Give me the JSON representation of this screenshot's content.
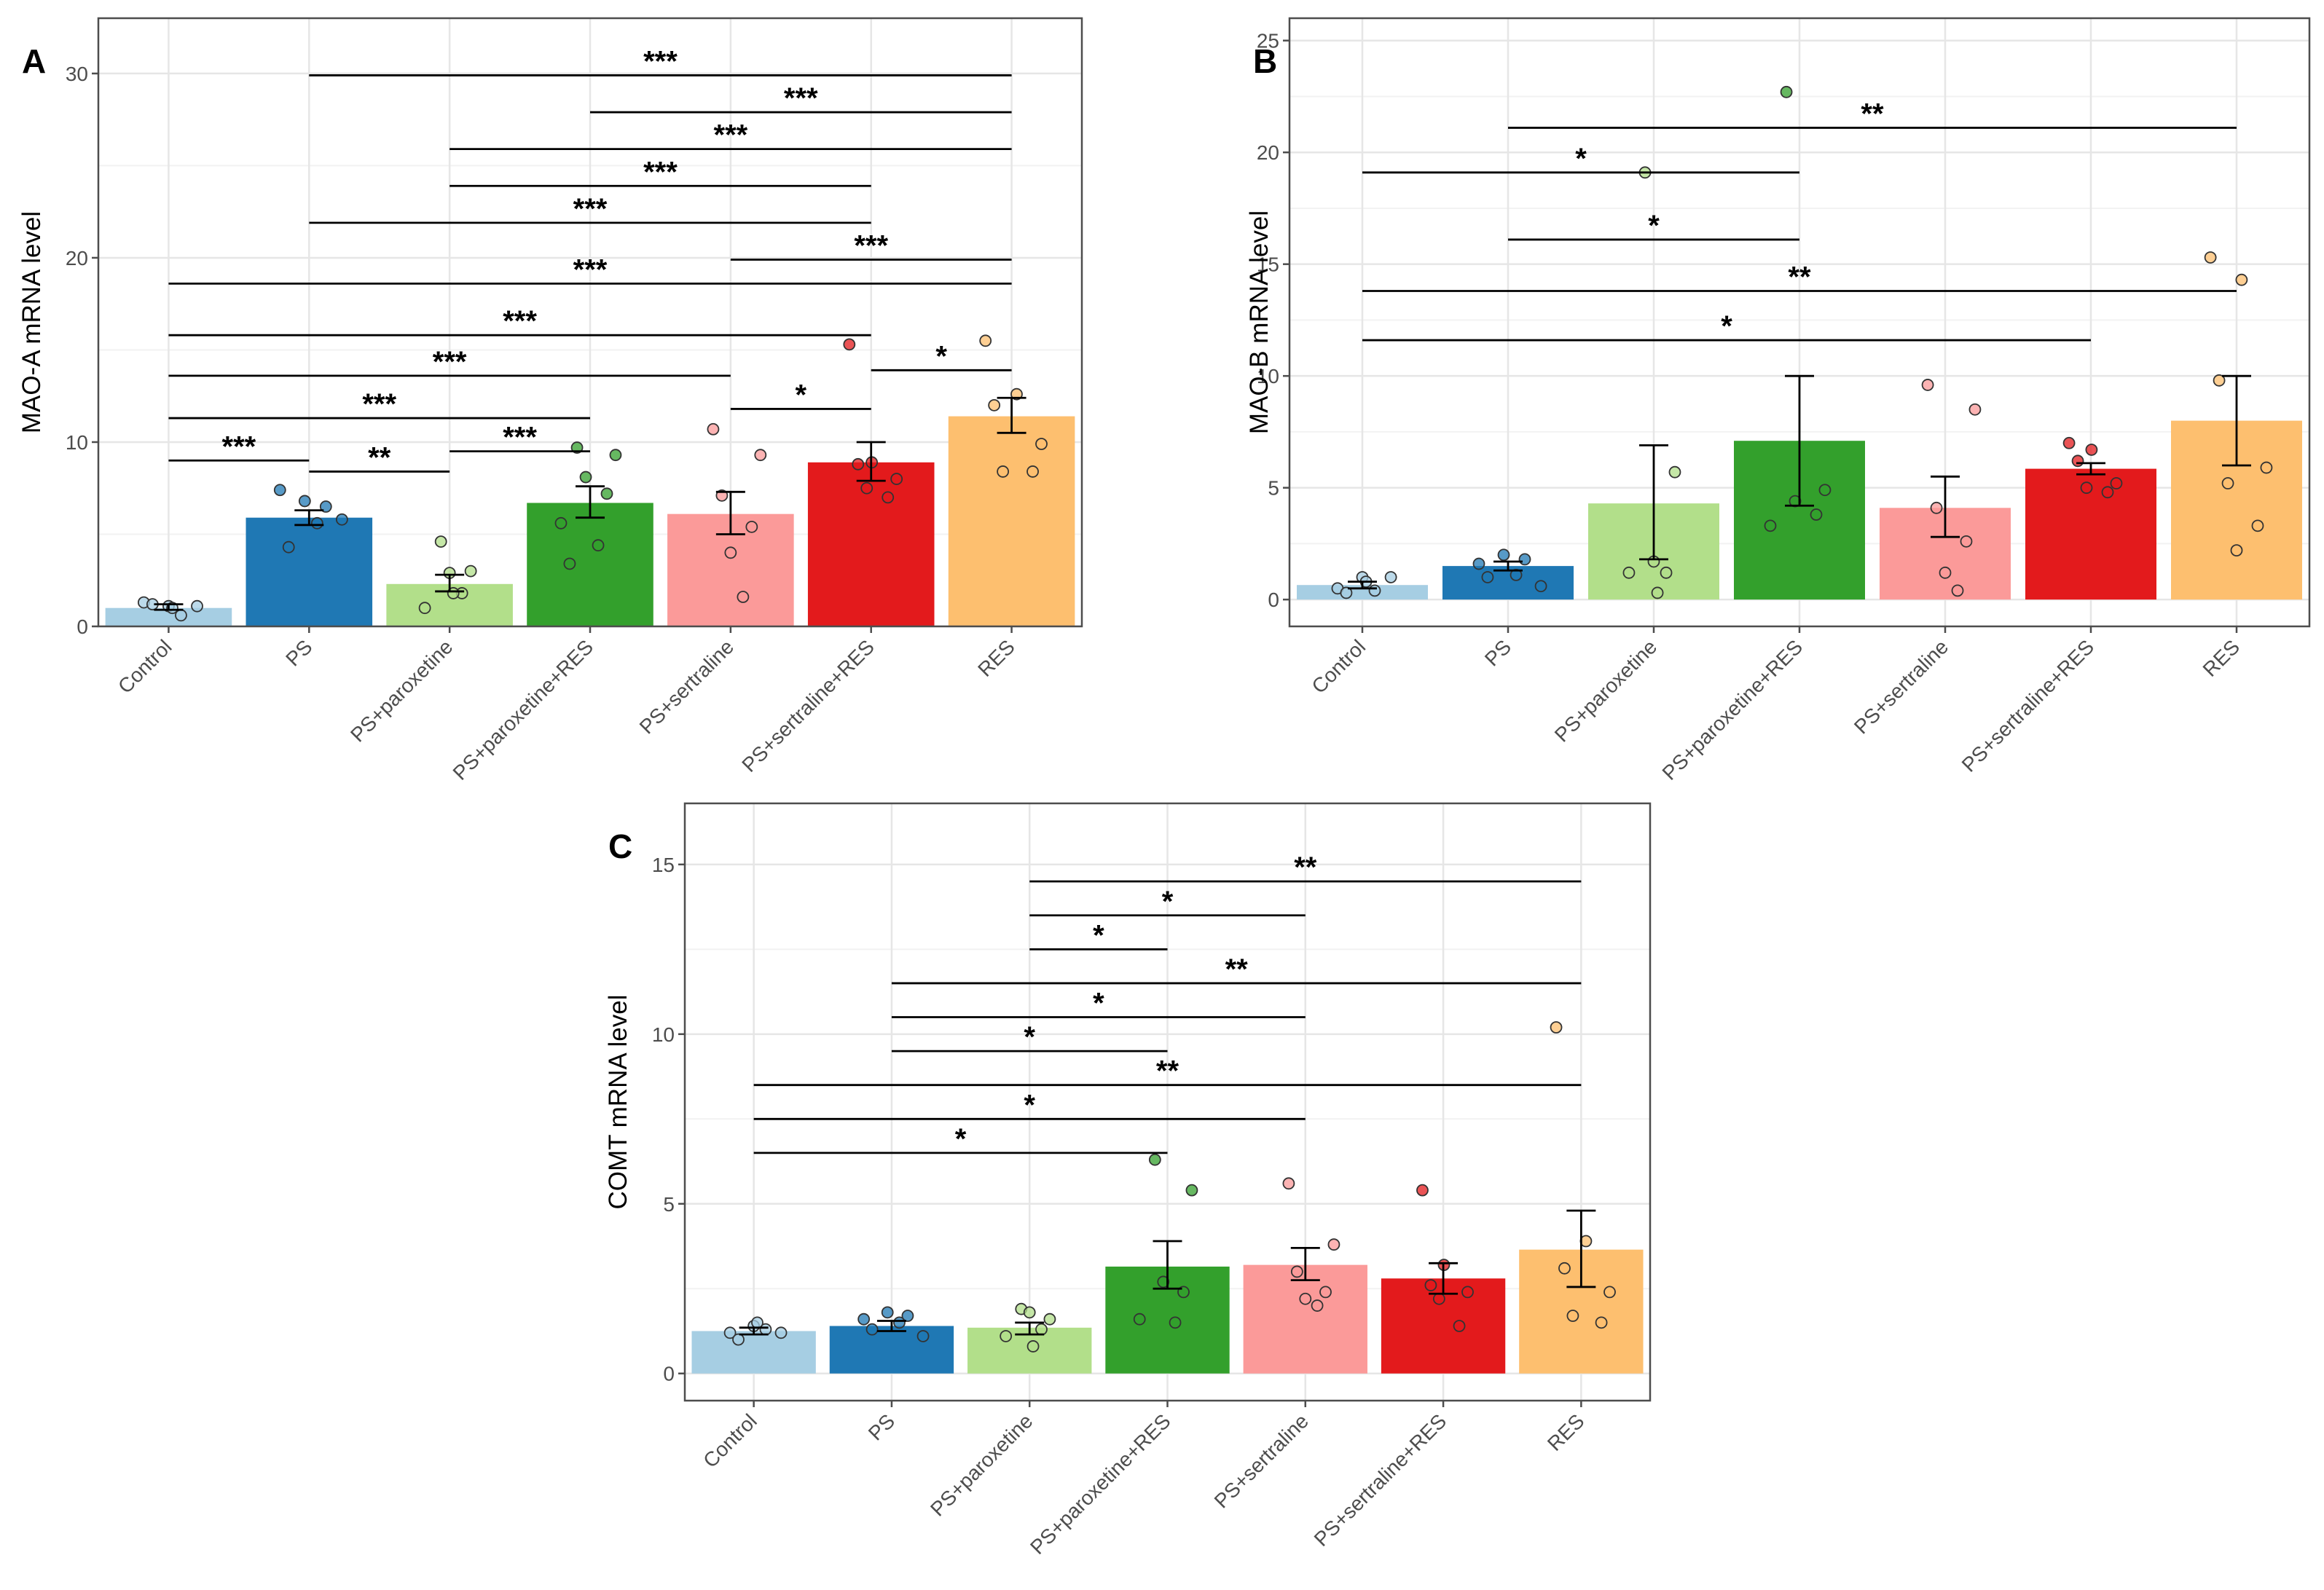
{
  "chart_data": [
    {
      "id": "A",
      "type": "bar",
      "panel_label": "A",
      "title": "",
      "xlabel": "",
      "ylabel": "MAO-A mRNA level",
      "ylim": [
        0,
        33
      ],
      "yticks": [
        0,
        10,
        20,
        30
      ],
      "grid": true,
      "categories": [
        "Control",
        "PS",
        "PS+paroxetine",
        "PS+paroxetine+RES",
        "PS+sertraline",
        "PS+sertraline+RES",
        "RES"
      ],
      "colors": [
        "#a6cee3",
        "#1f78b4",
        "#b2df8a",
        "#33a02c",
        "#fb9a99",
        "#e31a1c",
        "#fdbf6f"
      ],
      "values": [
        1.0,
        5.9,
        2.3,
        6.7,
        6.1,
        8.9,
        11.4
      ],
      "error_low": [
        0.9,
        5.5,
        1.9,
        5.9,
        5.0,
        7.9,
        10.5
      ],
      "error_high": [
        1.2,
        6.3,
        2.8,
        7.6,
        7.3,
        10.0,
        12.4
      ],
      "points": [
        [
          1.1,
          0.6,
          1.3,
          1.0,
          1.2,
          1.1
        ],
        [
          6.8,
          6.5,
          7.4,
          5.6,
          4.3,
          5.8
        ],
        [
          4.6,
          3.0,
          2.9,
          1.8,
          1.0,
          1.8
        ],
        [
          9.7,
          9.3,
          8.1,
          7.2,
          5.6,
          4.4,
          3.4
        ],
        [
          10.7,
          9.3,
          7.1,
          5.4,
          4.0,
          1.6
        ],
        [
          15.3,
          8.9,
          8.8,
          8.0,
          7.5,
          7.0
        ],
        [
          15.5,
          12.6,
          12.0,
          9.9,
          8.4,
          8.4
        ]
      ],
      "comparisons": [
        {
          "from": "Control",
          "to": "PS",
          "y": 9.0,
          "label": "***"
        },
        {
          "from": "PS",
          "to": "PS+paroxetine",
          "y": 8.4,
          "label": "**"
        },
        {
          "from": "PS+paroxetine",
          "to": "PS+paroxetine+RES",
          "y": 9.5,
          "label": "***"
        },
        {
          "from": "Control",
          "to": "PS+paroxetine+RES",
          "y": 11.3,
          "label": "***"
        },
        {
          "from": "PS+sertraline",
          "to": "PS+sertraline+RES",
          "y": 11.8,
          "label": "*"
        },
        {
          "from": "Control",
          "to": "PS+sertraline",
          "y": 13.6,
          "label": "***"
        },
        {
          "from": "PS+sertraline+RES",
          "to": "RES",
          "y": 13.9,
          "label": "*"
        },
        {
          "from": "Control",
          "to": "PS+sertraline+RES",
          "y": 15.8,
          "label": "***"
        },
        {
          "from": "Control",
          "to": "RES",
          "y": 18.6,
          "label": "***"
        },
        {
          "from": "PS+sertraline",
          "to": "RES",
          "y": 19.9,
          "label": "***"
        },
        {
          "from": "PS",
          "to": "PS+sertraline+RES",
          "y": 21.9,
          "label": "***"
        },
        {
          "from": "PS+paroxetine",
          "to": "PS+sertraline+RES",
          "y": 23.9,
          "label": "***"
        },
        {
          "from": "PS+paroxetine",
          "to": "RES",
          "y": 25.9,
          "label": "***"
        },
        {
          "from": "PS+paroxetine+RES",
          "to": "RES",
          "y": 27.9,
          "label": "***"
        },
        {
          "from": "PS",
          "to": "RES",
          "y": 29.9,
          "label": "***"
        }
      ]
    },
    {
      "id": "B",
      "type": "bar",
      "panel_label": "B",
      "title": "",
      "xlabel": "",
      "ylabel": "MAO-B mRNA level",
      "ylim": [
        -1.2,
        26
      ],
      "yticks": [
        0,
        5,
        10,
        15,
        20,
        25
      ],
      "grid": true,
      "categories": [
        "Control",
        "PS",
        "PS+paroxetine",
        "PS+paroxetine+RES",
        "PS+sertraline",
        "PS+sertraline+RES",
        "RES"
      ],
      "colors": [
        "#a6cee3",
        "#1f78b4",
        "#b2df8a",
        "#33a02c",
        "#fb9a99",
        "#e31a1c",
        "#fdbf6f"
      ],
      "values": [
        0.65,
        1.5,
        4.3,
        7.1,
        4.1,
        5.85,
        8.0
      ],
      "error_low": [
        0.5,
        1.3,
        1.8,
        4.2,
        2.8,
        5.6,
        6.0
      ],
      "error_high": [
        0.8,
        1.7,
        6.9,
        10.0,
        5.5,
        6.1,
        10.0
      ],
      "points": [
        [
          1.0,
          0.4,
          0.5,
          0.8,
          0.3,
          1.0
        ],
        [
          2.0,
          1.8,
          1.6,
          1.1,
          1.0,
          0.6
        ],
        [
          19.1,
          5.7,
          1.7,
          1.2,
          1.2,
          0.3
        ],
        [
          22.7,
          4.9,
          4.4,
          3.8,
          3.3
        ],
        [
          9.6,
          8.5,
          4.1,
          2.6,
          1.2,
          0.4
        ],
        [
          7.0,
          6.7,
          6.2,
          5.2,
          5.0,
          4.8
        ],
        [
          15.3,
          14.3,
          9.8,
          5.9,
          5.2,
          3.3,
          2.2
        ]
      ],
      "comparisons": [
        {
          "from": "Control",
          "to": "PS+sertraline+RES",
          "y": 11.6,
          "label": "*"
        },
        {
          "from": "Control",
          "to": "RES",
          "y": 13.8,
          "label": "**"
        },
        {
          "from": "PS",
          "to": "PS+paroxetine+RES",
          "y": 16.1,
          "label": "*"
        },
        {
          "from": "Control",
          "to": "PS+paroxetine+RES",
          "y": 19.1,
          "label": "*"
        },
        {
          "from": "PS",
          "to": "RES",
          "y": 21.1,
          "label": "**"
        }
      ]
    },
    {
      "id": "C",
      "type": "bar",
      "panel_label": "C",
      "title": "",
      "xlabel": "",
      "ylabel": "COMT mRNA level",
      "ylim": [
        -0.8,
        16.8
      ],
      "yticks": [
        0,
        5,
        10,
        15
      ],
      "grid": true,
      "categories": [
        "Control",
        "PS",
        "PS+paroxetine",
        "PS+paroxetine+RES",
        "PS+sertraline",
        "PS+sertraline+RES",
        "RES"
      ],
      "colors": [
        "#a6cee3",
        "#1f78b4",
        "#b2df8a",
        "#33a02c",
        "#fb9a99",
        "#e31a1c",
        "#fdbf6f"
      ],
      "values": [
        1.25,
        1.4,
        1.35,
        3.15,
        3.2,
        2.8,
        3.65
      ],
      "error_low": [
        1.15,
        1.25,
        1.15,
        2.5,
        2.75,
        2.35,
        2.55
      ],
      "error_high": [
        1.35,
        1.55,
        1.5,
        3.9,
        3.7,
        3.25,
        4.8
      ],
      "points": [
        [
          1.4,
          1.3,
          1.2,
          1.5,
          1.0,
          1.2
        ],
        [
          1.8,
          1.7,
          1.6,
          1.5,
          1.3,
          1.1
        ],
        [
          1.9,
          1.6,
          1.8,
          1.3,
          1.1,
          0.8
        ],
        [
          6.3,
          5.4,
          2.7,
          2.4,
          1.6,
          1.5
        ],
        [
          5.6,
          3.8,
          3.0,
          2.4,
          2.2,
          2.0
        ],
        [
          5.4,
          3.2,
          2.6,
          2.4,
          2.2,
          1.4
        ],
        [
          10.2,
          3.9,
          3.1,
          2.4,
          1.7,
          1.5
        ]
      ],
      "comparisons": [
        {
          "from": "Control",
          "to": "PS+paroxetine+RES",
          "y": 6.5,
          "label": "*"
        },
        {
          "from": "Control",
          "to": "PS+sertraline",
          "y": 7.5,
          "label": "*"
        },
        {
          "from": "Control",
          "to": "RES",
          "y": 8.5,
          "label": "**"
        },
        {
          "from": "PS",
          "to": "PS+paroxetine+RES",
          "y": 9.5,
          "label": "*"
        },
        {
          "from": "PS",
          "to": "PS+sertraline",
          "y": 10.5,
          "label": "*"
        },
        {
          "from": "PS",
          "to": "RES",
          "y": 11.5,
          "label": "**"
        },
        {
          "from": "PS+paroxetine",
          "to": "PS+paroxetine+RES",
          "y": 12.5,
          "label": "*"
        },
        {
          "from": "PS+paroxetine",
          "to": "PS+sertraline",
          "y": 13.5,
          "label": "*"
        },
        {
          "from": "PS+paroxetine",
          "to": "RES",
          "y": 14.5,
          "label": "**"
        }
      ]
    }
  ]
}
